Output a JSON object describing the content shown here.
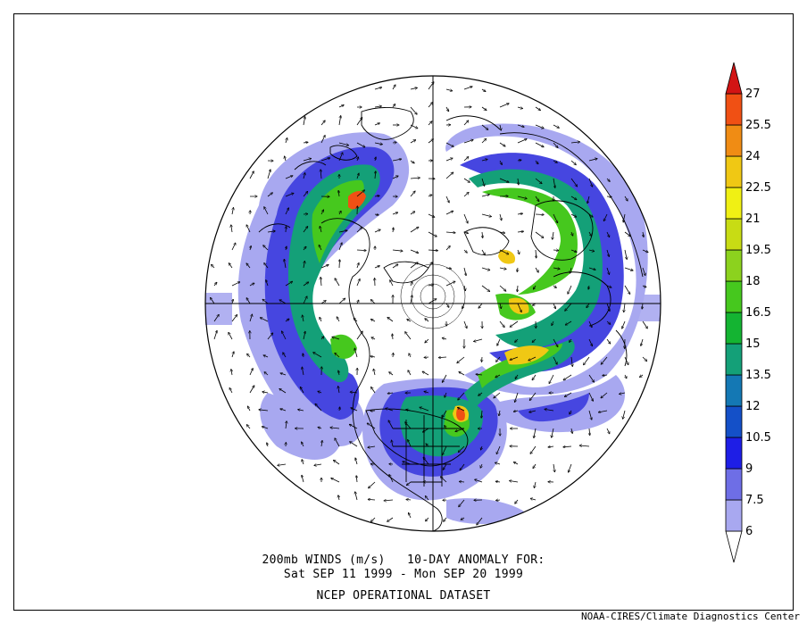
{
  "title_line1": "200mb WINDS (m/s)   10-DAY ANOMALY FOR:",
  "title_line2": "Sat SEP 11 1999 - Mon SEP 20 1999",
  "title_line3": "NCEP OPERATIONAL DATASET",
  "credit": "NOAA-CIRES/Climate Diagnostics Center",
  "colorbar": {
    "levels": [
      "6",
      "7.5",
      "9",
      "10.5",
      "12",
      "13.5",
      "15",
      "16.5",
      "18",
      "19.5",
      "21",
      "22.5",
      "24",
      "25.5",
      "27"
    ],
    "colors": [
      "#ffffff",
      "#a8a8f0",
      "#6e6ee6",
      "#1e1ee6",
      "#1450c8",
      "#1478b4",
      "#14a078",
      "#14b432",
      "#46c81e",
      "#8cd21e",
      "#c8dc14",
      "#f0f014",
      "#f0c814",
      "#f08c14",
      "#f05014",
      "#d21414"
    ]
  },
  "chart_data": {
    "type": "heatmap",
    "projection": "north polar stereographic",
    "quantity": "200mb wind speed anomaly",
    "units": "m/s",
    "period": "Sat SEP 11 1999 - Mon SEP 20 1999",
    "color_levels": [
      6,
      7.5,
      9,
      10.5,
      12,
      13.5,
      15,
      16.5,
      18,
      19.5,
      21,
      22.5,
      24,
      25.5,
      27
    ],
    "overlay": "wind anomaly vectors"
  }
}
